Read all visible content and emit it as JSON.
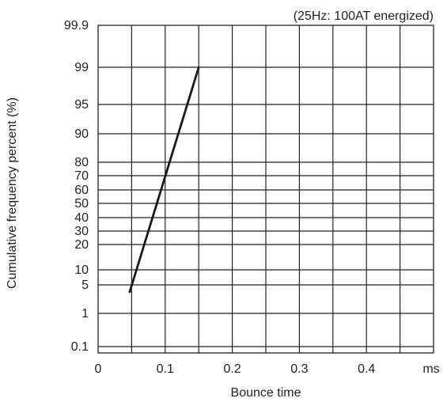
{
  "chart_data": {
    "type": "line",
    "annotation": "(25Hz: 100AT energized)",
    "xlabel": "Bounce time",
    "ylabel": "Cumulative frequency percent (%)",
    "x_unit": "ms",
    "xlim": [
      0,
      0.5
    ],
    "x_ticks": [
      0,
      0.1,
      0.2,
      0.3,
      0.4
    ],
    "x_tick_labels": [
      "0",
      "0.1",
      "0.2",
      "0.3",
      "0.4"
    ],
    "x_gridlines": [
      0.05,
      0.1,
      0.15,
      0.2,
      0.25,
      0.3,
      0.35,
      0.4,
      0.45
    ],
    "y_scale": "probability",
    "y_ticks": [
      0.1,
      1,
      5,
      10,
      20,
      30,
      40,
      50,
      60,
      70,
      80,
      90,
      95,
      99,
      99.9
    ],
    "y_tick_labels": [
      "0.1",
      "1",
      "5",
      "10",
      "20",
      "30",
      "40",
      "50",
      "60",
      "70",
      "80",
      "90",
      "95",
      "99",
      "99.9"
    ],
    "grid": true,
    "series": [
      {
        "x": [
          0.047,
          0.15
        ],
        "y": [
          4,
          99
        ]
      }
    ],
    "colors": {
      "line": "#1a1a1a",
      "grid": "#222222",
      "text": "#222222"
    }
  }
}
